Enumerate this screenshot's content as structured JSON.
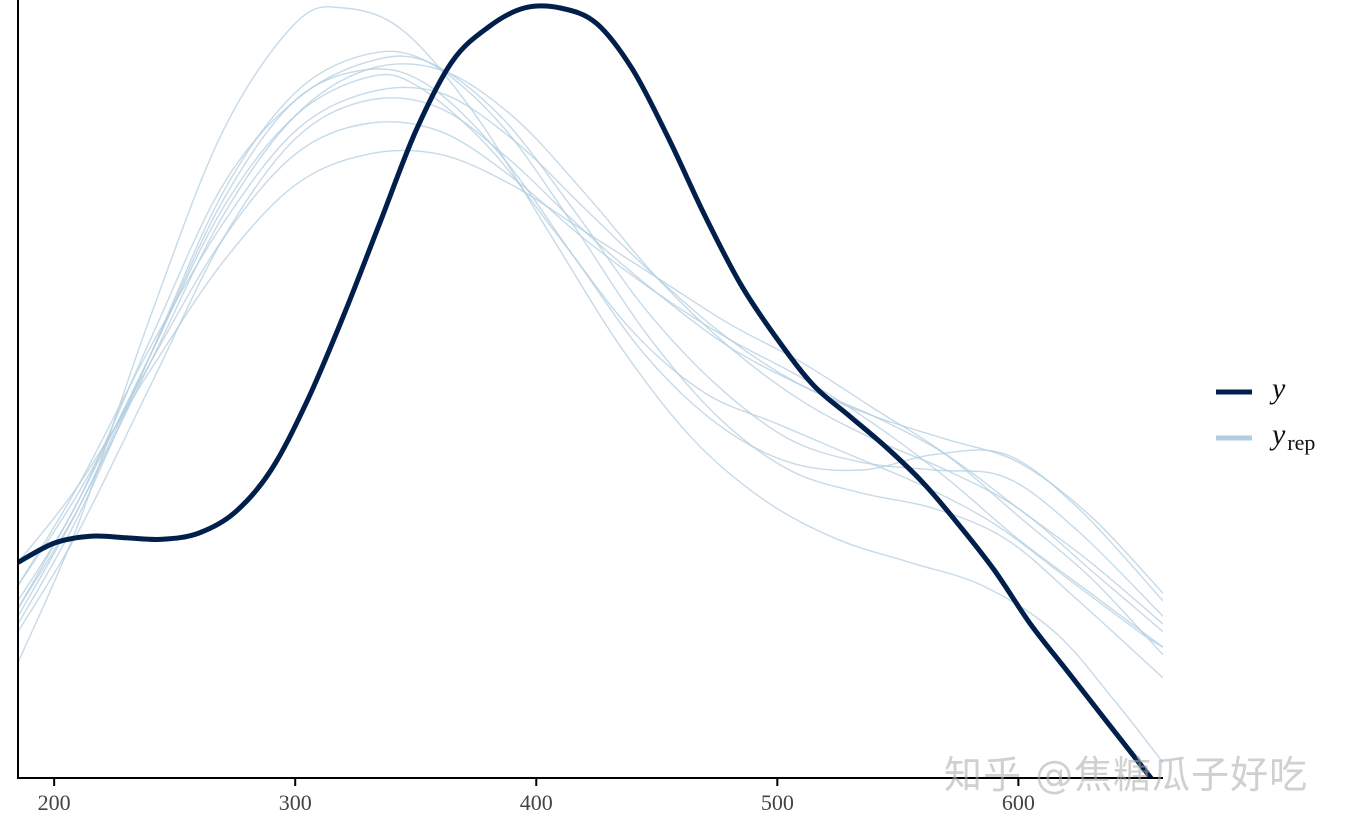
{
  "chart_data": {
    "type": "line",
    "title": "",
    "xlabel": "",
    "ylabel": "",
    "xlim": [
      185,
      660
    ],
    "ylim": [
      0,
      1.0
    ],
    "x_ticks": [
      200,
      300,
      400,
      500,
      600
    ],
    "y_axis_ticks_shown": false,
    "grid": false,
    "legend_position": "right",
    "colors": {
      "y": "#011f4b",
      "y_rep": "#b3cde0"
    },
    "series": [
      {
        "name": "y",
        "role": "observed",
        "points": [
          [
            185,
            0.28
          ],
          [
            200,
            0.305
          ],
          [
            215,
            0.314
          ],
          [
            230,
            0.312
          ],
          [
            245,
            0.31
          ],
          [
            260,
            0.318
          ],
          [
            275,
            0.345
          ],
          [
            290,
            0.4
          ],
          [
            305,
            0.49
          ],
          [
            320,
            0.6
          ],
          [
            335,
            0.72
          ],
          [
            350,
            0.84
          ],
          [
            365,
            0.93
          ],
          [
            380,
            0.975
          ],
          [
            395,
            1.0
          ],
          [
            410,
            1.0
          ],
          [
            425,
            0.98
          ],
          [
            440,
            0.92
          ],
          [
            455,
            0.83
          ],
          [
            470,
            0.73
          ],
          [
            485,
            0.64
          ],
          [
            500,
            0.57
          ],
          [
            515,
            0.51
          ],
          [
            530,
            0.47
          ],
          [
            545,
            0.43
          ],
          [
            560,
            0.385
          ],
          [
            575,
            0.33
          ],
          [
            590,
            0.27
          ],
          [
            605,
            0.2
          ],
          [
            620,
            0.14
          ],
          [
            635,
            0.08
          ],
          [
            650,
            0.02
          ],
          [
            660,
            -0.02
          ]
        ]
      },
      {
        "name": "y_rep",
        "role": "replicate",
        "points": [
          [
            185,
            0.22
          ],
          [
            210,
            0.36
          ],
          [
            240,
            0.55
          ],
          [
            270,
            0.74
          ],
          [
            300,
            0.86
          ],
          [
            330,
            0.91
          ],
          [
            350,
            0.9
          ],
          [
            380,
            0.82
          ],
          [
            410,
            0.7
          ],
          [
            440,
            0.58
          ],
          [
            470,
            0.5
          ],
          [
            500,
            0.46
          ],
          [
            530,
            0.42
          ],
          [
            560,
            0.38
          ],
          [
            590,
            0.33
          ],
          [
            620,
            0.26
          ],
          [
            650,
            0.19
          ],
          [
            660,
            0.17
          ]
        ]
      },
      {
        "role": "replicate",
        "points": [
          [
            185,
            0.25
          ],
          [
            210,
            0.37
          ],
          [
            240,
            0.54
          ],
          [
            270,
            0.7
          ],
          [
            300,
            0.81
          ],
          [
            330,
            0.85
          ],
          [
            360,
            0.84
          ],
          [
            390,
            0.78
          ],
          [
            420,
            0.7
          ],
          [
            450,
            0.63
          ],
          [
            480,
            0.57
          ],
          [
            510,
            0.52
          ],
          [
            540,
            0.46
          ],
          [
            570,
            0.39
          ],
          [
            600,
            0.31
          ],
          [
            630,
            0.24
          ],
          [
            660,
            0.17
          ]
        ]
      },
      {
        "role": "replicate",
        "points": [
          [
            185,
            0.28
          ],
          [
            210,
            0.38
          ],
          [
            240,
            0.53
          ],
          [
            270,
            0.67
          ],
          [
            300,
            0.77
          ],
          [
            330,
            0.81
          ],
          [
            360,
            0.81
          ],
          [
            390,
            0.77
          ],
          [
            420,
            0.71
          ],
          [
            450,
            0.65
          ],
          [
            480,
            0.59
          ],
          [
            510,
            0.54
          ],
          [
            540,
            0.48
          ],
          [
            570,
            0.42
          ],
          [
            600,
            0.34
          ],
          [
            630,
            0.26
          ],
          [
            660,
            0.16
          ]
        ]
      },
      {
        "role": "replicate",
        "points": [
          [
            185,
            0.21
          ],
          [
            210,
            0.35
          ],
          [
            240,
            0.55
          ],
          [
            270,
            0.75
          ],
          [
            300,
            0.88
          ],
          [
            330,
            0.92
          ],
          [
            355,
            0.9
          ],
          [
            385,
            0.81
          ],
          [
            415,
            0.68
          ],
          [
            445,
            0.55
          ],
          [
            475,
            0.46
          ],
          [
            505,
            0.41
          ],
          [
            535,
            0.4
          ],
          [
            565,
            0.42
          ],
          [
            595,
            0.42
          ],
          [
            625,
            0.35
          ],
          [
            660,
            0.23
          ]
        ]
      },
      {
        "role": "replicate",
        "points": [
          [
            185,
            0.15
          ],
          [
            210,
            0.33
          ],
          [
            240,
            0.6
          ],
          [
            270,
            0.84
          ],
          [
            300,
            0.98
          ],
          [
            320,
            1.0
          ],
          [
            345,
            0.97
          ],
          [
            375,
            0.86
          ],
          [
            405,
            0.71
          ],
          [
            435,
            0.56
          ],
          [
            465,
            0.44
          ],
          [
            495,
            0.36
          ],
          [
            525,
            0.31
          ],
          [
            555,
            0.28
          ],
          [
            585,
            0.25
          ],
          [
            615,
            0.19
          ],
          [
            640,
            0.1
          ],
          [
            660,
            0.02
          ]
        ]
      },
      {
        "role": "replicate",
        "points": [
          [
            185,
            0.19
          ],
          [
            210,
            0.32
          ],
          [
            240,
            0.51
          ],
          [
            270,
            0.7
          ],
          [
            300,
            0.83
          ],
          [
            330,
            0.88
          ],
          [
            360,
            0.87
          ],
          [
            390,
            0.8
          ],
          [
            420,
            0.71
          ],
          [
            450,
            0.63
          ],
          [
            480,
            0.56
          ],
          [
            510,
            0.51
          ],
          [
            540,
            0.47
          ],
          [
            570,
            0.42
          ],
          [
            600,
            0.35
          ],
          [
            630,
            0.28
          ],
          [
            660,
            0.2
          ]
        ]
      },
      {
        "role": "replicate",
        "points": [
          [
            185,
            0.23
          ],
          [
            210,
            0.36
          ],
          [
            240,
            0.57
          ],
          [
            270,
            0.77
          ],
          [
            300,
            0.88
          ],
          [
            330,
            0.93
          ],
          [
            355,
            0.93
          ],
          [
            385,
            0.86
          ],
          [
            415,
            0.74
          ],
          [
            445,
            0.61
          ],
          [
            475,
            0.51
          ],
          [
            505,
            0.44
          ],
          [
            535,
            0.41
          ],
          [
            565,
            0.4
          ],
          [
            595,
            0.39
          ],
          [
            625,
            0.32
          ],
          [
            660,
            0.21
          ]
        ]
      },
      {
        "role": "replicate",
        "points": [
          [
            185,
            0.25
          ],
          [
            210,
            0.38
          ],
          [
            240,
            0.56
          ],
          [
            270,
            0.72
          ],
          [
            300,
            0.84
          ],
          [
            330,
            0.89
          ],
          [
            360,
            0.89
          ],
          [
            390,
            0.83
          ],
          [
            420,
            0.74
          ],
          [
            450,
            0.65
          ],
          [
            480,
            0.57
          ],
          [
            510,
            0.51
          ],
          [
            540,
            0.47
          ],
          [
            570,
            0.44
          ],
          [
            600,
            0.41
          ],
          [
            630,
            0.34
          ],
          [
            660,
            0.24
          ]
        ]
      },
      {
        "role": "replicate",
        "points": [
          [
            185,
            0.2
          ],
          [
            210,
            0.34
          ],
          [
            240,
            0.55
          ],
          [
            270,
            0.76
          ],
          [
            300,
            0.89
          ],
          [
            330,
            0.94
          ],
          [
            355,
            0.93
          ],
          [
            385,
            0.85
          ],
          [
            415,
            0.72
          ],
          [
            445,
            0.58
          ],
          [
            475,
            0.47
          ],
          [
            505,
            0.4
          ],
          [
            535,
            0.37
          ],
          [
            565,
            0.35
          ],
          [
            595,
            0.31
          ],
          [
            625,
            0.23
          ],
          [
            660,
            0.13
          ]
        ]
      },
      {
        "role": "replicate",
        "points": [
          [
            185,
            0.22
          ],
          [
            210,
            0.35
          ],
          [
            240,
            0.54
          ],
          [
            270,
            0.73
          ],
          [
            300,
            0.86
          ],
          [
            330,
            0.92
          ],
          [
            360,
            0.92
          ],
          [
            390,
            0.86
          ],
          [
            420,
            0.76
          ],
          [
            450,
            0.65
          ],
          [
            480,
            0.56
          ],
          [
            510,
            0.49
          ],
          [
            540,
            0.44
          ],
          [
            570,
            0.4
          ],
          [
            600,
            0.35
          ],
          [
            630,
            0.27
          ],
          [
            660,
            0.19
          ]
        ]
      }
    ]
  },
  "legend": {
    "items": [
      {
        "key": "y",
        "label": "y",
        "subscript": ""
      },
      {
        "key": "y_rep",
        "label": "y",
        "subscript": "rep"
      }
    ]
  },
  "watermark": "知乎 @焦糖瓜子好吃"
}
